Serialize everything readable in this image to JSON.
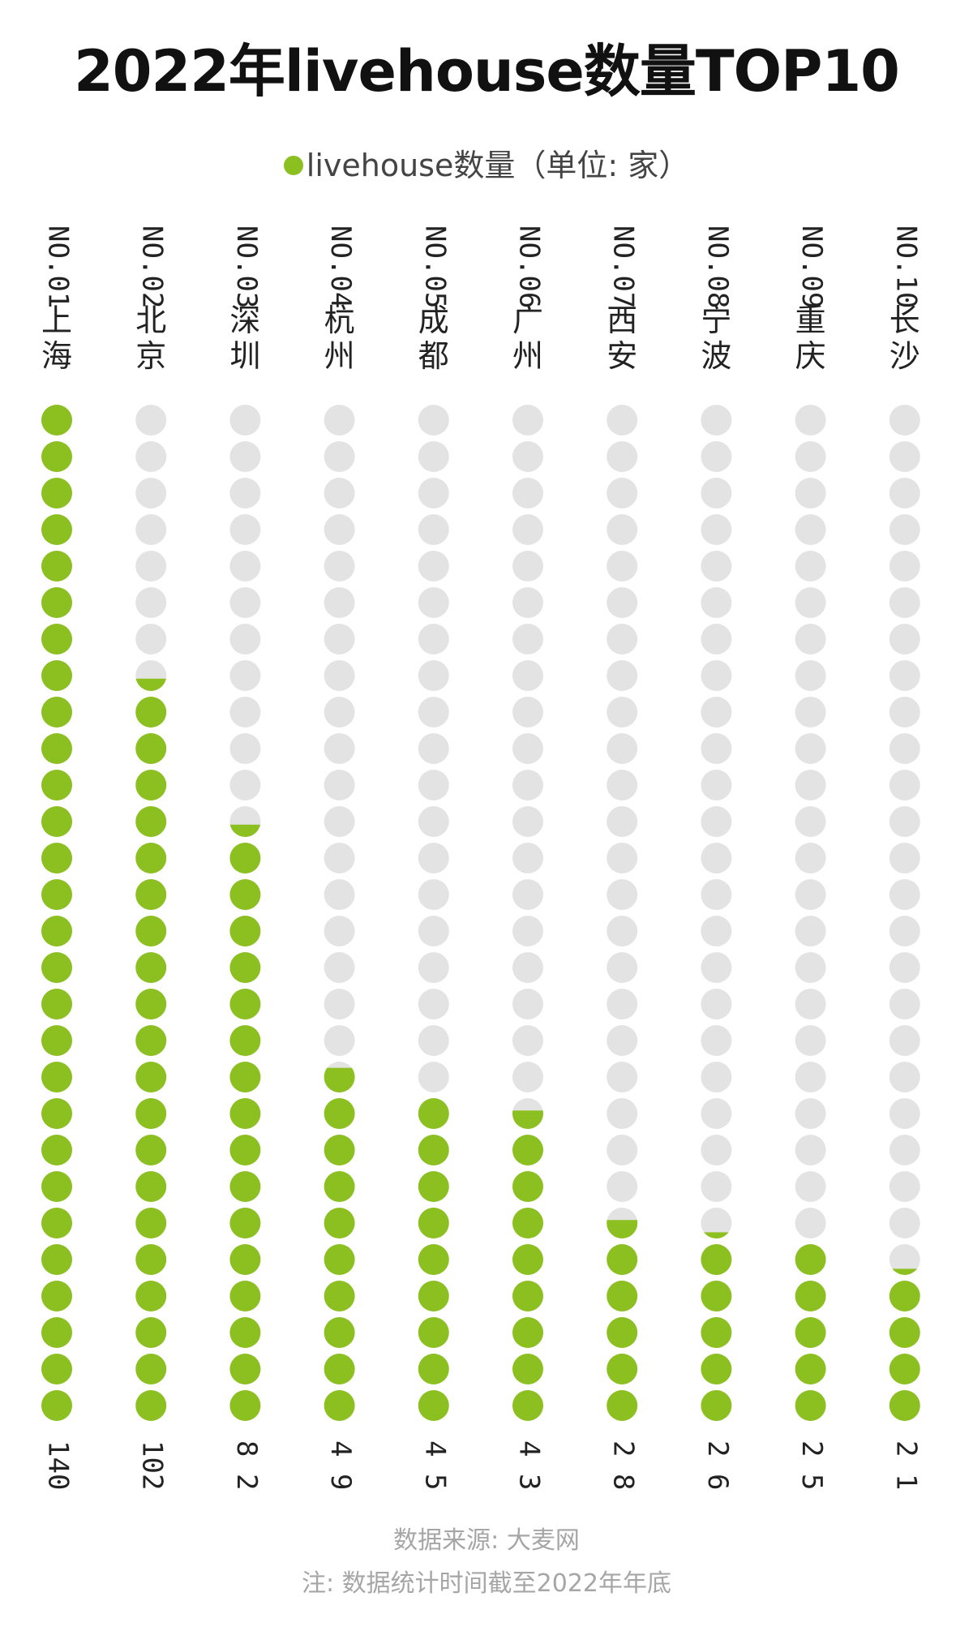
{
  "title": "2022年livehouse数量TOP10",
  "legend": {
    "label": "livehouse数量（单位: 家）",
    "color": "#8cc021"
  },
  "chart_data": {
    "type": "bar",
    "style": "dot-column pictogram, 28 dots per column, partial fill shown in boundary dot",
    "categories": [
      "上海",
      "北京",
      "深圳",
      "杭州",
      "成都",
      "广州",
      "西安",
      "宁波",
      "重庆",
      "长沙"
    ],
    "ranks": [
      "NO.01",
      "NO.02",
      "NO.03",
      "NO.04",
      "NO.05",
      "NO.06",
      "NO.07",
      "NO.08",
      "NO.09",
      "NO.10"
    ],
    "value_labels": [
      "140",
      "102",
      "8 2",
      "4 9",
      "4 5",
      "4 3",
      "2 8",
      "2 6",
      "2 5",
      "2 1"
    ],
    "series": [
      {
        "name": "livehouse数量（单位: 家）",
        "values": [
          140,
          102,
          82,
          49,
          45,
          43,
          28,
          26,
          25,
          21
        ]
      }
    ],
    "max_value": 140,
    "dots_per_column": 28,
    "colors": {
      "filled": "#8cc021",
      "empty": "#e3e3e3"
    }
  },
  "footer": {
    "source": "数据来源: 大麦网",
    "note": "注: 数据统计时间截至2022年年底"
  }
}
